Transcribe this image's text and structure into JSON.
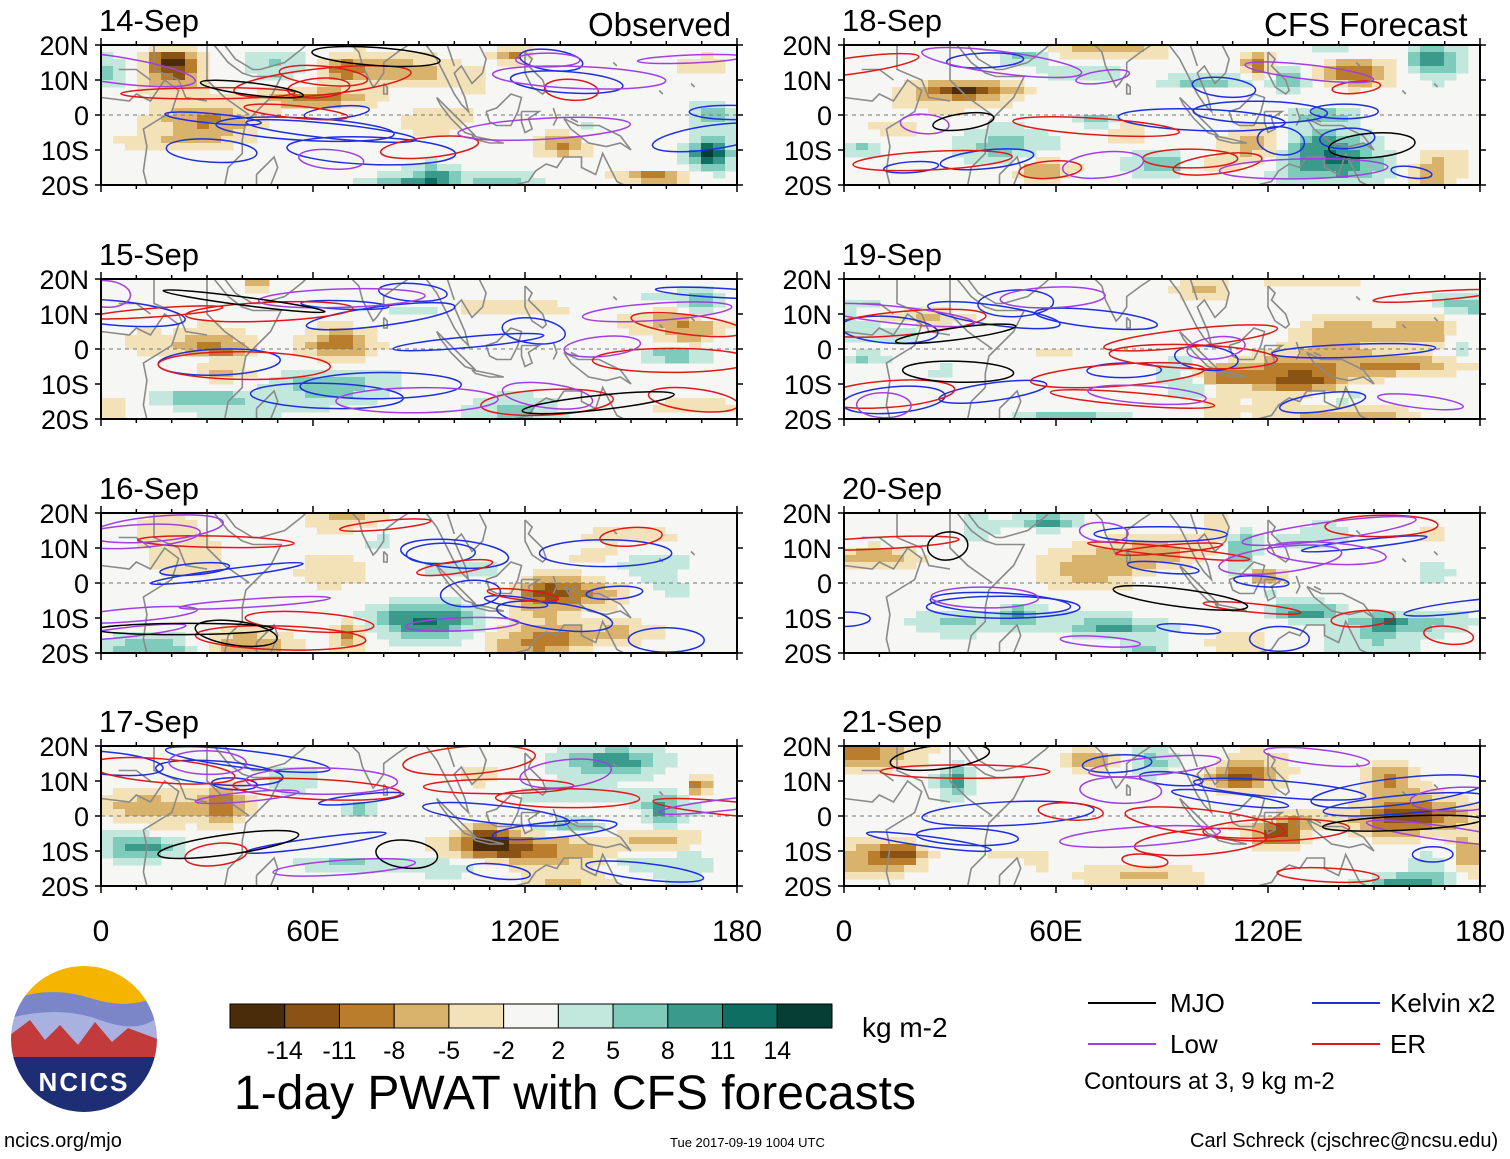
{
  "header": {
    "observed_label": "Observed",
    "forecast_label": "CFS Forecast"
  },
  "panels": [
    {
      "date": "14-Sep",
      "source": "observed"
    },
    {
      "date": "15-Sep",
      "source": "observed"
    },
    {
      "date": "16-Sep",
      "source": "observed"
    },
    {
      "date": "17-Sep",
      "source": "observed"
    },
    {
      "date": "18-Sep",
      "source": "forecast"
    },
    {
      "date": "19-Sep",
      "source": "forecast"
    },
    {
      "date": "20-Sep",
      "source": "forecast"
    },
    {
      "date": "21-Sep",
      "source": "forecast"
    }
  ],
  "axes": {
    "lat_ticks": [
      "20N",
      "10N",
      "0",
      "10S",
      "20S"
    ],
    "lon_ticks": [
      "0",
      "60E",
      "120E",
      "180"
    ],
    "lat_range": [
      -20,
      20
    ],
    "lon_range": [
      0,
      180
    ]
  },
  "colorbar": {
    "unit": "kg m-2",
    "tick_labels": [
      "-14",
      "-11",
      "-8",
      "-5",
      "-2",
      "2",
      "5",
      "8",
      "11",
      "14"
    ],
    "colors": [
      "#4a2c0b",
      "#8a5213",
      "#b97d2c",
      "#d9b36c",
      "#f3e2b8",
      "#f6f6f4",
      "#c2e8de",
      "#7fcbbb",
      "#3a9a8c",
      "#0e6e62",
      "#063d34"
    ]
  },
  "title": "1-day PWAT with CFS forecasts",
  "legend": {
    "items": [
      {
        "label": "MJO",
        "color": "#000000"
      },
      {
        "label": "Kelvin x2",
        "color": "#1f2fe0"
      },
      {
        "label": "Low",
        "color": "#a040e0"
      },
      {
        "label": "ER",
        "color": "#e01818"
      }
    ],
    "note": "Contours at 3, 9 kg m-2"
  },
  "logo": {
    "text": "NCICS"
  },
  "footer": {
    "url": "ncics.org/mjo",
    "timestamp": "Tue 2017-09-19 1004 UTC",
    "credit": "Carl Schreck (cjschrec@ncsu.edu)"
  },
  "colors": {
    "land": "#8a8a8a",
    "equator": "#777777"
  }
}
